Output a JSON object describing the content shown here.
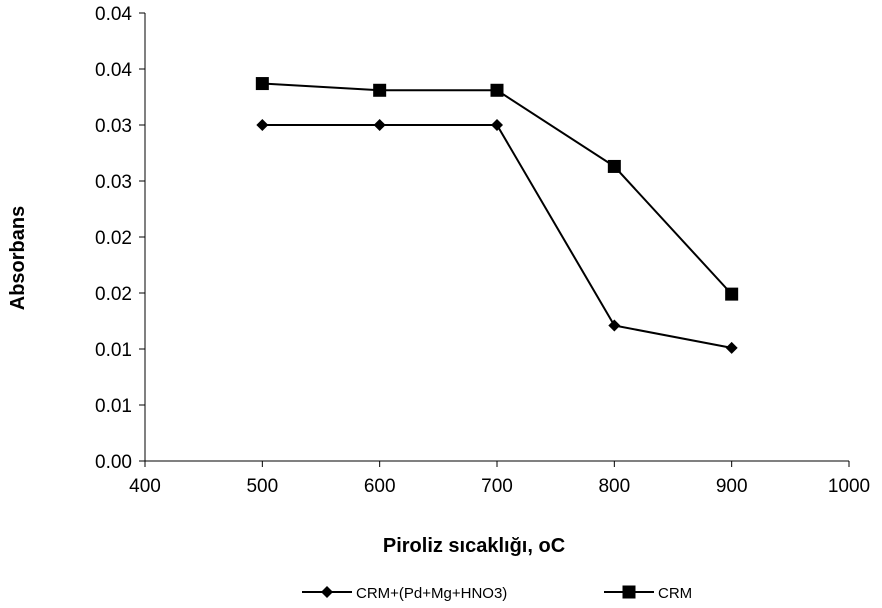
{
  "chart_data": {
    "type": "line",
    "xlabel": "Piroliz sıcaklığı, oC",
    "ylabel": "Absorbans",
    "xlim": [
      400,
      1000
    ],
    "ylim": [
      0,
      0.04
    ],
    "x_ticks": [
      "400",
      "500",
      "600",
      "700",
      "800",
      "900",
      "1000"
    ],
    "y_ticks": [
      "0.00",
      "0.01",
      "0.01",
      "0.02",
      "0.02",
      "0.03",
      "0.03",
      "0.04",
      "0.04"
    ],
    "grid": false,
    "legend_position": "bottom",
    "series": [
      {
        "name": "CRM+(Pd+Mg+HNO3)",
        "marker": "diamond",
        "color": "#000000",
        "x": [
          500,
          600,
          700,
          800,
          900
        ],
        "y": [
          0.03,
          0.03,
          0.03,
          0.0121,
          0.0101
        ]
      },
      {
        "name": "CRM",
        "marker": "square",
        "color": "#000000",
        "x": [
          500,
          600,
          700,
          800,
          900
        ],
        "y": [
          0.0337,
          0.0331,
          0.0331,
          0.0263,
          0.0149
        ]
      }
    ]
  }
}
